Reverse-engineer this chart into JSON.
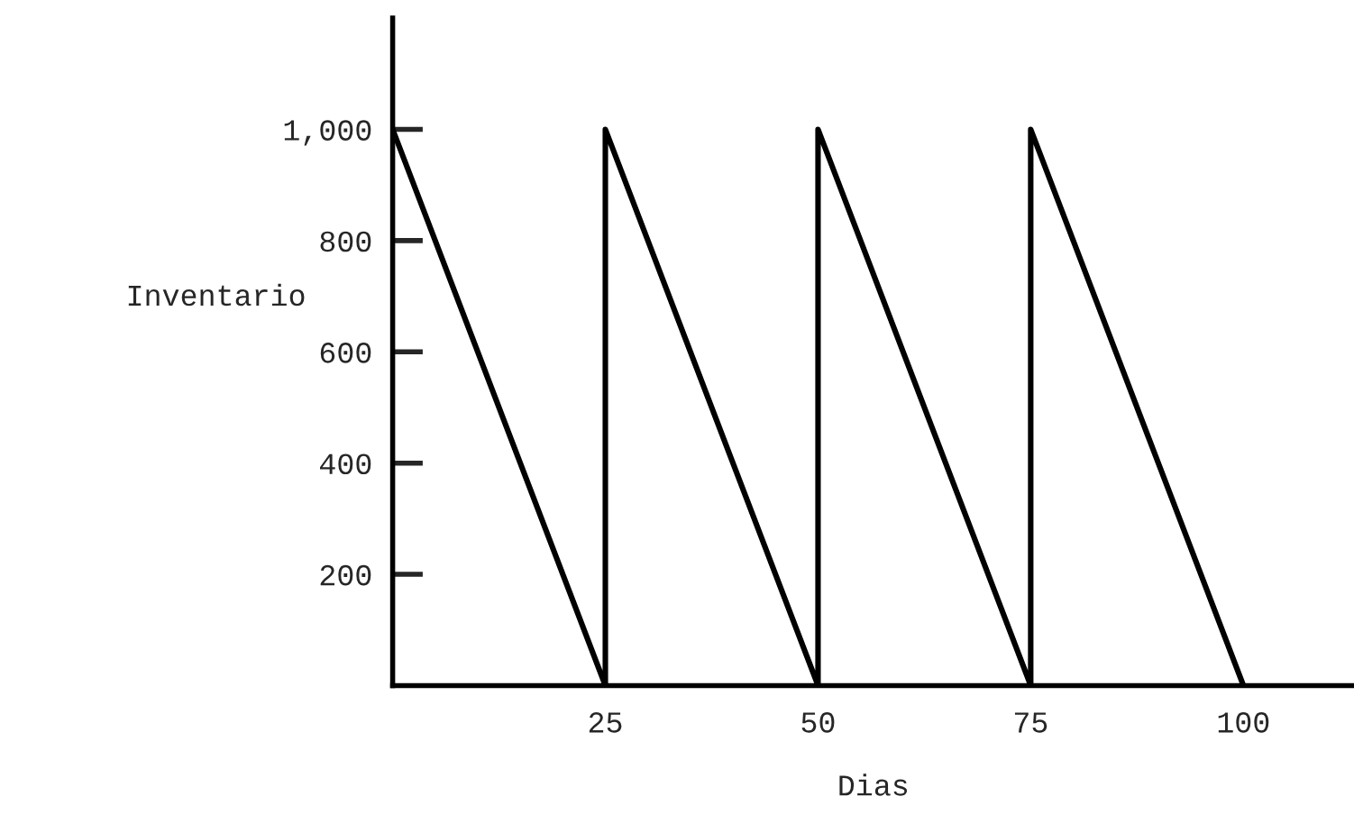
{
  "chart_data": {
    "type": "line",
    "xlabel": "Dias",
    "ylabel": "Inventario",
    "x": [
      0,
      25,
      25,
      50,
      50,
      75,
      75,
      100
    ],
    "series": [
      {
        "color": "#000000",
        "values": [
          1000,
          0,
          1000,
          0,
          1000,
          0,
          1000,
          0
        ]
      }
    ],
    "xlim": [
      0,
      113
    ],
    "ylim": [
      0,
      1200
    ],
    "xticks": [
      25,
      50,
      75,
      100
    ],
    "yticks": [
      200,
      400,
      600,
      800,
      {
        "value": 1000,
        "label": "1,000"
      }
    ],
    "grid": false,
    "marker": "none",
    "line_style": "solid"
  }
}
